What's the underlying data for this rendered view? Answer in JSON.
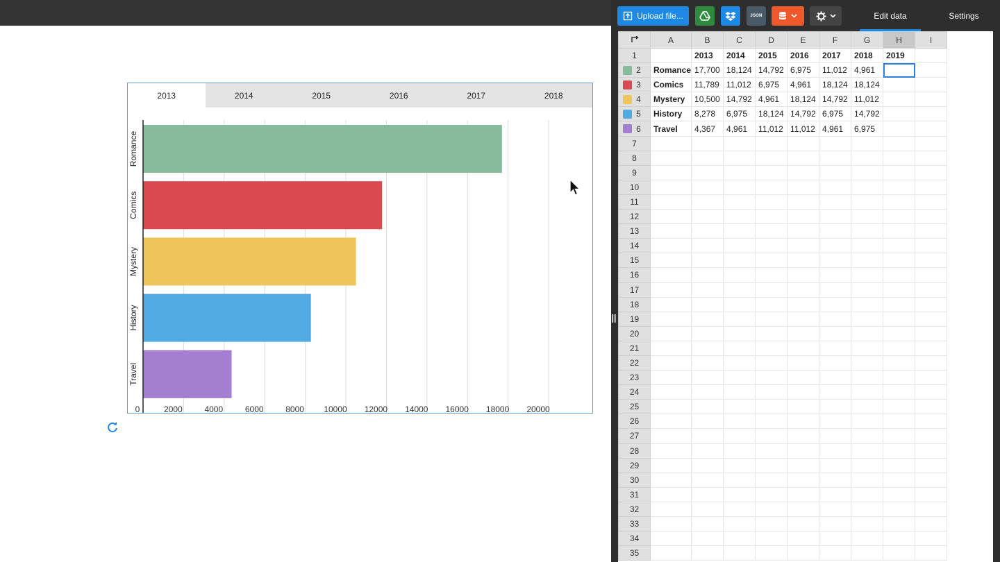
{
  "chart_tabs": [
    "2013",
    "2014",
    "2015",
    "2016",
    "2017",
    "2018"
  ],
  "active_tab_index": 0,
  "chart_data": {
    "type": "bar",
    "orientation": "horizontal",
    "categories": [
      "Romance",
      "Comics",
      "Mystery",
      "History",
      "Travel"
    ],
    "values": [
      17700,
      11789,
      10500,
      8278,
      4367
    ],
    "colors": [
      "#86bb9b",
      "#d9494f",
      "#eec45b",
      "#50abe3",
      "#a47ed1"
    ],
    "xlim": [
      0,
      20000
    ],
    "xticks": [
      "0",
      "2000",
      "4000",
      "6000",
      "8000",
      "10000",
      "12000",
      "14000",
      "16000",
      "18000",
      "20000"
    ],
    "grid": true
  },
  "toolbar": {
    "upload_label": "Upload file...",
    "json_label": "JSON",
    "tab_edit_data": "Edit data",
    "tab_settings": "Settings"
  },
  "sheet": {
    "columns": [
      "A",
      "B",
      "C",
      "D",
      "E",
      "F",
      "G",
      "H",
      "I"
    ],
    "header_row": [
      "",
      "2013",
      "2014",
      "2015",
      "2016",
      "2017",
      "2018",
      "2019",
      ""
    ],
    "rows": [
      {
        "label": "Romance",
        "color": "#86bb9b",
        "cells": [
          "17,700",
          "18,124",
          "14,792",
          "6,975",
          "11,012",
          "4,961",
          "",
          ""
        ]
      },
      {
        "label": "Comics",
        "color": "#d9494f",
        "cells": [
          "11,789",
          "11,012",
          "6,975",
          "4,961",
          "18,124",
          "18,124",
          "",
          ""
        ]
      },
      {
        "label": "Mystery",
        "color": "#eec45b",
        "cells": [
          "10,500",
          "14,792",
          "4,961",
          "18,124",
          "14,792",
          "11,012",
          "",
          ""
        ]
      },
      {
        "label": "History",
        "color": "#50abe3",
        "cells": [
          "8,278",
          "6,975",
          "18,124",
          "14,792",
          "6,975",
          "14,792",
          "",
          ""
        ]
      },
      {
        "label": "Travel",
        "color": "#a47ed1",
        "cells": [
          "4,367",
          "4,961",
          "11,012",
          "11,012",
          "4,961",
          "6,975",
          "",
          ""
        ]
      }
    ],
    "total_rows": 35
  }
}
